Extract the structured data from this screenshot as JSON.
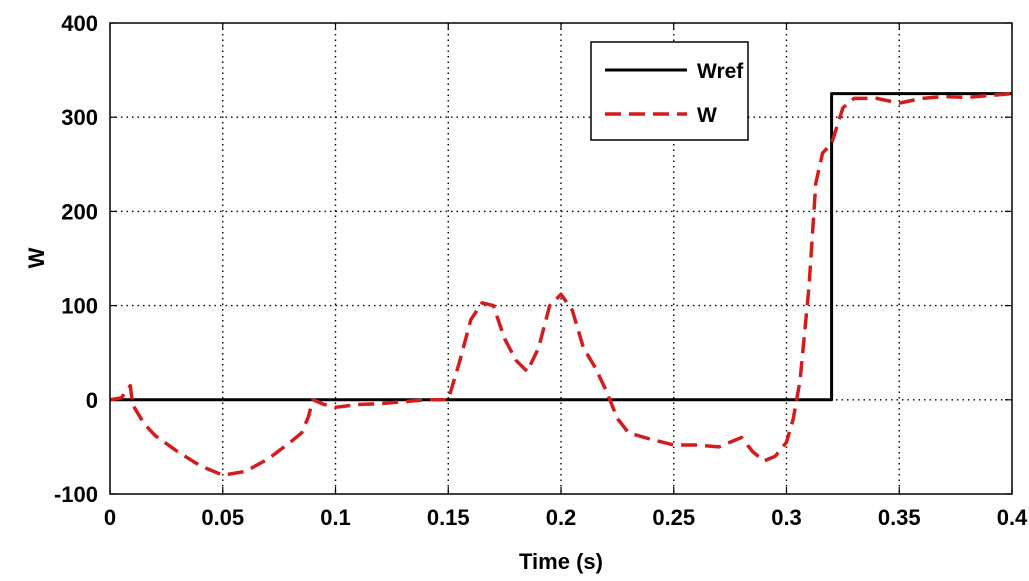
{
  "chart_data": {
    "type": "line",
    "title": "",
    "xlabel": "Time (s)",
    "ylabel": "W",
    "xlim": [
      0,
      0.4
    ],
    "ylim": [
      -100,
      400
    ],
    "x_ticks": [
      "0",
      "0.05",
      "0.1",
      "0.15",
      "0.2",
      "0.25",
      "0.3",
      "0.35",
      "0.4"
    ],
    "y_ticks": [
      "-100",
      "0",
      "100",
      "200",
      "300",
      "400"
    ],
    "grid": true,
    "legend_position": "top-right",
    "series": [
      {
        "name": "Wref",
        "color": "#000000",
        "style": "solid",
        "points": [
          [
            0,
            0
          ],
          [
            0.32,
            0
          ],
          [
            0.32,
            325
          ],
          [
            0.4,
            325
          ]
        ]
      },
      {
        "name": "W",
        "color": "#d41c1c",
        "style": "dashed",
        "points": [
          [
            0,
            0
          ],
          [
            0.005,
            2
          ],
          [
            0.009,
            15
          ],
          [
            0.01,
            -5
          ],
          [
            0.015,
            -25
          ],
          [
            0.02,
            -38
          ],
          [
            0.03,
            -55
          ],
          [
            0.04,
            -70
          ],
          [
            0.05,
            -80
          ],
          [
            0.06,
            -76
          ],
          [
            0.07,
            -63
          ],
          [
            0.08,
            -45
          ],
          [
            0.085,
            -35
          ],
          [
            0.088,
            -18
          ],
          [
            0.09,
            0
          ],
          [
            0.095,
            -5
          ],
          [
            0.1,
            -8
          ],
          [
            0.11,
            -5
          ],
          [
            0.12,
            -4
          ],
          [
            0.13,
            -2
          ],
          [
            0.14,
            0
          ],
          [
            0.15,
            0
          ],
          [
            0.155,
            40
          ],
          [
            0.16,
            85
          ],
          [
            0.165,
            103
          ],
          [
            0.17,
            100
          ],
          [
            0.175,
            65
          ],
          [
            0.18,
            42
          ],
          [
            0.185,
            30
          ],
          [
            0.19,
            55
          ],
          [
            0.195,
            100
          ],
          [
            0.2,
            112
          ],
          [
            0.205,
            95
          ],
          [
            0.21,
            55
          ],
          [
            0.215,
            35
          ],
          [
            0.22,
            10
          ],
          [
            0.225,
            -20
          ],
          [
            0.23,
            -35
          ],
          [
            0.24,
            -42
          ],
          [
            0.25,
            -48
          ],
          [
            0.26,
            -48
          ],
          [
            0.27,
            -50
          ],
          [
            0.28,
            -40
          ],
          [
            0.285,
            -55
          ],
          [
            0.29,
            -65
          ],
          [
            0.295,
            -60
          ],
          [
            0.3,
            -45
          ],
          [
            0.303,
            -20
          ],
          [
            0.306,
            20
          ],
          [
            0.31,
            120
          ],
          [
            0.313,
            230
          ],
          [
            0.316,
            262
          ],
          [
            0.32,
            272
          ],
          [
            0.325,
            310
          ],
          [
            0.33,
            320
          ],
          [
            0.34,
            320
          ],
          [
            0.35,
            315
          ],
          [
            0.36,
            320
          ],
          [
            0.37,
            322
          ],
          [
            0.38,
            321
          ],
          [
            0.39,
            323
          ],
          [
            0.4,
            325
          ]
        ]
      }
    ]
  }
}
